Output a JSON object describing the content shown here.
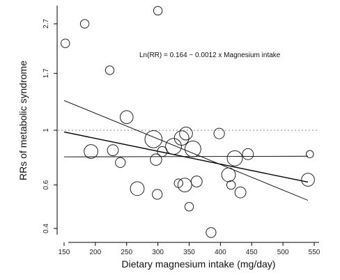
{
  "chart_data": {
    "type": "scatter",
    "title": "",
    "xlabel": "Dietary magnesium intake (mg/day)",
    "ylabel": "RRs of metabolic syndrome",
    "xlim": [
      140,
      560
    ],
    "ylim": [
      0.37,
      3.2
    ],
    "y_scale": "log",
    "x_ticks": [
      150,
      200,
      250,
      300,
      350,
      400,
      450,
      500,
      550
    ],
    "y_ticks": [
      0.4,
      0.6,
      1,
      1.7,
      2.7
    ],
    "y_tick_labels": [
      "0.4",
      "0.6",
      "1",
      "1.7",
      "2.7"
    ],
    "reference_line": {
      "y": 1,
      "style": "dotted"
    },
    "annotation": "Ln(RR) = 0.164 − 0.0012 x Magnesium intake",
    "regression": {
      "intercept": 0.164,
      "slope": -0.0012
    },
    "ci_lower": {
      "x": [
        150,
        540
      ],
      "y": [
        0.78,
        0.785
      ]
    },
    "ci_upper": {
      "x": [
        150,
        540
      ],
      "y": [
        1.32,
        0.52
      ]
    },
    "points": [
      {
        "x": 152,
        "y": 2.25,
        "weight": 1
      },
      {
        "x": 183,
        "y": 2.7,
        "weight": 1
      },
      {
        "x": 193,
        "y": 0.82,
        "weight": 3.5
      },
      {
        "x": 223,
        "y": 1.75,
        "weight": 1
      },
      {
        "x": 228,
        "y": 0.83,
        "weight": 2
      },
      {
        "x": 240,
        "y": 0.74,
        "weight": 1.5
      },
      {
        "x": 250,
        "y": 1.13,
        "weight": 3
      },
      {
        "x": 267,
        "y": 0.58,
        "weight": 3.5
      },
      {
        "x": 293,
        "y": 0.92,
        "weight": 6
      },
      {
        "x": 297,
        "y": 0.76,
        "weight": 2.2
      },
      {
        "x": 300,
        "y": 3.05,
        "weight": 1
      },
      {
        "x": 299,
        "y": 0.55,
        "weight": 1.5
      },
      {
        "x": 307,
        "y": 0.82,
        "weight": 1.5
      },
      {
        "x": 325,
        "y": 0.86,
        "weight": 5
      },
      {
        "x": 333,
        "y": 0.61,
        "weight": 1
      },
      {
        "x": 338,
        "y": 0.93,
        "weight": 4
      },
      {
        "x": 343,
        "y": 0.6,
        "weight": 3.5
      },
      {
        "x": 345,
        "y": 0.97,
        "weight": 3
      },
      {
        "x": 350,
        "y": 0.49,
        "weight": 1
      },
      {
        "x": 356,
        "y": 0.84,
        "weight": 5
      },
      {
        "x": 362,
        "y": 0.62,
        "weight": 2
      },
      {
        "x": 385,
        "y": 0.385,
        "weight": 1.5
      },
      {
        "x": 398,
        "y": 0.97,
        "weight": 1.8
      },
      {
        "x": 413,
        "y": 0.66,
        "weight": 3.5
      },
      {
        "x": 417,
        "y": 0.6,
        "weight": 1
      },
      {
        "x": 423,
        "y": 0.77,
        "weight": 4.5
      },
      {
        "x": 432,
        "y": 0.56,
        "weight": 2
      },
      {
        "x": 444,
        "y": 0.8,
        "weight": 2
      },
      {
        "x": 540,
        "y": 0.63,
        "weight": 3
      },
      {
        "x": 543,
        "y": 0.8,
        "weight": 0.6
      }
    ]
  }
}
